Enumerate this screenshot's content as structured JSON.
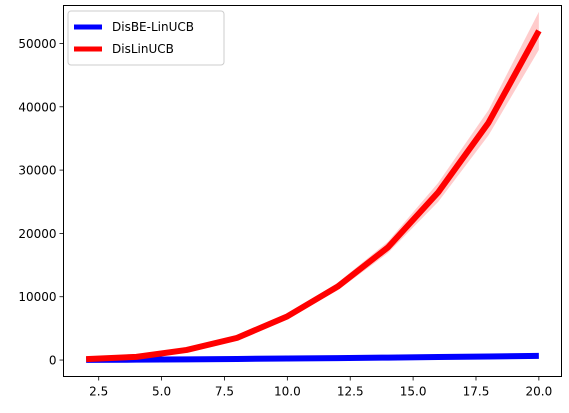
{
  "chart_data": {
    "type": "line",
    "title": "",
    "xlabel": "",
    "ylabel": "",
    "xlim": [
      1.1,
      20.9
    ],
    "ylim": [
      -2600,
      56000
    ],
    "xticks": [
      2.5,
      5.0,
      7.5,
      10.0,
      12.5,
      15.0,
      17.5,
      20.0
    ],
    "xtick_labels": [
      "2.5",
      "5.0",
      "7.5",
      "10.0",
      "12.5",
      "15.0",
      "17.5",
      "20.0"
    ],
    "yticks": [
      0,
      10000,
      20000,
      30000,
      40000,
      50000
    ],
    "ytick_labels": [
      "0",
      "10000",
      "20000",
      "30000",
      "40000",
      "50000"
    ],
    "grid": false,
    "legend_position": "top-left",
    "x": [
      2,
      4,
      6,
      8,
      10,
      12,
      14,
      16,
      18,
      20
    ],
    "series": [
      {
        "name": "DisBE-LinUCB",
        "color": "#0000ff",
        "values": [
          20,
          60,
          110,
          170,
          240,
          310,
          390,
          470,
          560,
          650
        ],
        "lower": [
          20,
          60,
          110,
          170,
          240,
          310,
          390,
          470,
          560,
          650
        ],
        "upper": [
          20,
          60,
          110,
          170,
          240,
          310,
          390,
          470,
          560,
          650
        ]
      },
      {
        "name": "DisLinUCB",
        "color": "#ff0000",
        "band_color": "#ff0000",
        "values": [
          150,
          500,
          1600,
          3500,
          6900,
          11600,
          17800,
          26500,
          37500,
          52000
        ],
        "lower": [
          120,
          430,
          1450,
          3250,
          6500,
          11000,
          16900,
          25000,
          35500,
          49000
        ],
        "upper": [
          180,
          570,
          1750,
          3750,
          7300,
          12200,
          18700,
          28000,
          39500,
          55000
        ]
      }
    ]
  }
}
